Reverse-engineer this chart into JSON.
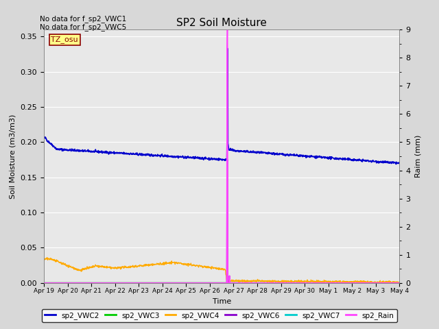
{
  "title": "SP2 Soil Moisture",
  "xlabel": "Time",
  "ylabel_left": "Soil Moisture (m3/m3)",
  "ylabel_right": "Raim (mm)",
  "no_data_text": [
    "No data for f_sp2_VWC1",
    "No data for f_sp2_VWC5"
  ],
  "tz_label": "TZ_osu",
  "ylim_left": [
    0,
    0.36
  ],
  "ylim_right": [
    0,
    9.0
  ],
  "yticks_left": [
    0.0,
    0.05,
    0.1,
    0.15,
    0.2,
    0.25,
    0.3,
    0.35
  ],
  "yticks_right": [
    0.0,
    1.0,
    2.0,
    3.0,
    4.0,
    5.0,
    6.0,
    7.0,
    8.0,
    9.0
  ],
  "xtick_labels": [
    "Apr 19",
    "Apr 20",
    "Apr 21",
    "Apr 22",
    "Apr 23",
    "Apr 24",
    "Apr 25",
    "Apr 26",
    "Apr 27",
    "Apr 28",
    "Apr 29",
    "Apr 30",
    "May 1",
    "May 2",
    "May 3",
    "May 4"
  ],
  "bg_color": "#d8d8d8",
  "plot_bg_color": "#e8e8e8",
  "vwc2_color": "#0000cc",
  "vwc3_color": "#00cc00",
  "vwc4_color": "#ffaa00",
  "vwc6_color": "#8800cc",
  "vwc7_color": "#00cccc",
  "rain_color": "#ff44ff",
  "legend_labels": [
    "sp2_VWC2",
    "sp2_VWC3",
    "sp2_VWC4",
    "sp2_VWC6",
    "sp2_VWC7",
    "sp2_Rain"
  ]
}
